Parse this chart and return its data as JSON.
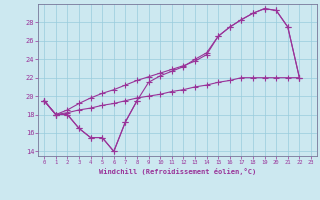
{
  "bg_color": "#cce8f0",
  "line_color": "#993399",
  "grid_color": "#99ccdd",
  "xlim": [
    -0.5,
    23.5
  ],
  "ylim": [
    13.5,
    30.0
  ],
  "yticks": [
    14,
    16,
    18,
    20,
    22,
    24,
    26,
    28
  ],
  "xticks": [
    0,
    1,
    2,
    3,
    4,
    5,
    6,
    7,
    8,
    9,
    10,
    11,
    12,
    13,
    14,
    15,
    16,
    17,
    18,
    19,
    20,
    21,
    22,
    23
  ],
  "xlabel": "Windchill (Refroidissement éolien,°C)",
  "s1_x": [
    0,
    1,
    2,
    3,
    4,
    5,
    6,
    7,
    8
  ],
  "s1_y": [
    19.5,
    18.0,
    18.0,
    16.5,
    15.5,
    15.5,
    14.0,
    17.2,
    19.5
  ],
  "s2_x": [
    0,
    1,
    2,
    3,
    4,
    5,
    6,
    7,
    8,
    9,
    10,
    11,
    12,
    13,
    14,
    15,
    16,
    17,
    18,
    19,
    20,
    21,
    22
  ],
  "s2_y": [
    19.5,
    18.0,
    18.0,
    16.5,
    15.5,
    15.5,
    14.0,
    17.2,
    19.5,
    21.5,
    22.2,
    22.7,
    23.2,
    24.0,
    24.7,
    26.5,
    27.5,
    28.3,
    29.0,
    29.5,
    29.3,
    27.5,
    22.0
  ],
  "s3_x": [
    0,
    1,
    2,
    3,
    4,
    5,
    6,
    7,
    8,
    9,
    10,
    11,
    12,
    13,
    14,
    15,
    16,
    17,
    18,
    19,
    20,
    21,
    22
  ],
  "s3_y": [
    19.5,
    18.0,
    18.5,
    19.2,
    19.8,
    20.3,
    20.7,
    21.2,
    21.7,
    22.1,
    22.5,
    22.9,
    23.3,
    23.8,
    24.5,
    26.5,
    27.5,
    28.3,
    29.0,
    29.5,
    29.3,
    27.5,
    22.0
  ],
  "s4_x": [
    0,
    1,
    2,
    3,
    4,
    5,
    6,
    7,
    8,
    9,
    10,
    11,
    12,
    13,
    14,
    15,
    16,
    17,
    18,
    19,
    20,
    21,
    22
  ],
  "s4_y": [
    19.5,
    18.0,
    18.2,
    18.5,
    18.7,
    19.0,
    19.2,
    19.5,
    19.8,
    20.0,
    20.2,
    20.5,
    20.7,
    21.0,
    21.2,
    21.5,
    21.7,
    22.0,
    22.0,
    22.0,
    22.0,
    22.0,
    22.0
  ]
}
